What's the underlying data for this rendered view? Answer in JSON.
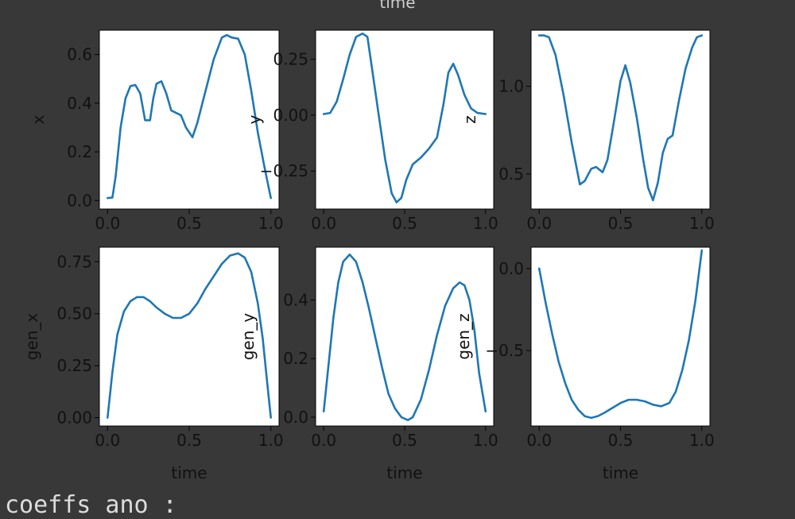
{
  "top_label": "time",
  "output_line": "coeffs ano :",
  "colors": {
    "background": "#383838",
    "panel": "#ffffff",
    "line": "#1f77b4",
    "text": "#111111"
  },
  "chart_data": [
    {
      "type": "line",
      "xlabel": "",
      "ylabel": "x",
      "xlim": [
        -0.05,
        1.05
      ],
      "ylim": [
        -0.035,
        0.7
      ],
      "xticks": [
        0.0,
        0.5,
        1.0
      ],
      "xtick_labels": [
        "0.0",
        "0.5",
        "1.0"
      ],
      "yticks": [
        0.0,
        0.2,
        0.4,
        0.6
      ],
      "ytick_labels": [
        "0.0",
        "0.2",
        "0.4",
        "0.6"
      ],
      "x": [
        0.0,
        0.03,
        0.05,
        0.08,
        0.11,
        0.14,
        0.17,
        0.2,
        0.23,
        0.26,
        0.28,
        0.3,
        0.33,
        0.36,
        0.39,
        0.42,
        0.45,
        0.48,
        0.52,
        0.55,
        0.6,
        0.65,
        0.7,
        0.73,
        0.76,
        0.8,
        0.84,
        0.88,
        0.92,
        0.96,
        1.0
      ],
      "y": [
        0.01,
        0.012,
        0.1,
        0.3,
        0.42,
        0.47,
        0.475,
        0.44,
        0.33,
        0.33,
        0.42,
        0.48,
        0.49,
        0.44,
        0.37,
        0.36,
        0.35,
        0.3,
        0.26,
        0.32,
        0.45,
        0.58,
        0.67,
        0.68,
        0.67,
        0.665,
        0.6,
        0.45,
        0.28,
        0.14,
        0.01
      ]
    },
    {
      "type": "line",
      "xlabel": "",
      "ylabel": "y",
      "xlim": [
        -0.05,
        1.05
      ],
      "ylim": [
        -0.42,
        0.38
      ],
      "xticks": [
        0.0,
        0.5,
        1.0
      ],
      "xtick_labels": [
        "0.0",
        "0.5",
        "1.0"
      ],
      "yticks": [
        -0.25,
        0.0,
        0.25
      ],
      "ytick_labels": [
        "−0.25",
        "0.00",
        "0.25"
      ],
      "x": [
        0.0,
        0.04,
        0.08,
        0.12,
        0.16,
        0.2,
        0.24,
        0.27,
        0.3,
        0.34,
        0.38,
        0.42,
        0.45,
        0.48,
        0.51,
        0.55,
        0.6,
        0.65,
        0.7,
        0.74,
        0.77,
        0.8,
        0.83,
        0.87,
        0.91,
        0.95,
        1.0
      ],
      "y": [
        0.005,
        0.01,
        0.06,
        0.16,
        0.27,
        0.35,
        0.365,
        0.35,
        0.2,
        0.0,
        -0.2,
        -0.35,
        -0.39,
        -0.37,
        -0.29,
        -0.22,
        -0.19,
        -0.15,
        -0.1,
        0.05,
        0.19,
        0.23,
        0.18,
        0.09,
        0.03,
        0.01,
        0.005
      ]
    },
    {
      "type": "line",
      "xlabel": "",
      "ylabel": "z",
      "xlim": [
        -0.05,
        1.05
      ],
      "ylim": [
        0.3,
        1.32
      ],
      "xticks": [
        0.0,
        0.5,
        1.0
      ],
      "xtick_labels": [
        "0.0",
        "0.5",
        "1.0"
      ],
      "yticks": [
        0.5,
        1.0
      ],
      "ytick_labels": [
        "0.5",
        "1.0"
      ],
      "x": [
        0.0,
        0.03,
        0.06,
        0.1,
        0.15,
        0.2,
        0.25,
        0.28,
        0.32,
        0.35,
        0.39,
        0.42,
        0.46,
        0.5,
        0.53,
        0.56,
        0.6,
        0.64,
        0.67,
        0.7,
        0.73,
        0.76,
        0.79,
        0.82,
        0.86,
        0.9,
        0.94,
        0.97,
        1.0
      ],
      "y": [
        1.29,
        1.29,
        1.28,
        1.18,
        0.95,
        0.68,
        0.44,
        0.46,
        0.53,
        0.54,
        0.51,
        0.58,
        0.8,
        1.03,
        1.12,
        1.02,
        0.82,
        0.58,
        0.42,
        0.35,
        0.45,
        0.62,
        0.7,
        0.72,
        0.92,
        1.1,
        1.22,
        1.28,
        1.29
      ]
    },
    {
      "type": "line",
      "xlabel": "time",
      "ylabel": "gen_x",
      "xlim": [
        -0.05,
        1.05
      ],
      "ylim": [
        -0.04,
        0.82
      ],
      "xticks": [
        0.0,
        0.5,
        1.0
      ],
      "xtick_labels": [
        "0.0",
        "0.5",
        "1.0"
      ],
      "yticks": [
        0.0,
        0.25,
        0.5,
        0.75
      ],
      "ytick_labels": [
        "0.00",
        "0.25",
        "0.50",
        "0.75"
      ],
      "x": [
        0.0,
        0.03,
        0.06,
        0.1,
        0.14,
        0.18,
        0.22,
        0.26,
        0.3,
        0.35,
        0.4,
        0.45,
        0.5,
        0.55,
        0.6,
        0.65,
        0.7,
        0.75,
        0.8,
        0.84,
        0.88,
        0.92,
        0.95,
        0.98,
        1.0
      ],
      "y": [
        0.0,
        0.22,
        0.4,
        0.51,
        0.56,
        0.58,
        0.58,
        0.56,
        0.53,
        0.5,
        0.48,
        0.48,
        0.5,
        0.55,
        0.62,
        0.68,
        0.74,
        0.78,
        0.79,
        0.77,
        0.7,
        0.55,
        0.38,
        0.15,
        0.0
      ]
    },
    {
      "type": "line",
      "xlabel": "time",
      "ylabel": "gen_y",
      "xlim": [
        -0.05,
        1.05
      ],
      "ylim": [
        -0.03,
        0.58
      ],
      "xticks": [
        0.0,
        0.5,
        1.0
      ],
      "xtick_labels": [
        "0.0",
        "0.5",
        "1.0"
      ],
      "yticks": [
        0.0,
        0.2,
        0.4
      ],
      "ytick_labels": [
        "0.0",
        "0.2",
        "0.4"
      ],
      "x": [
        0.0,
        0.03,
        0.06,
        0.09,
        0.12,
        0.16,
        0.2,
        0.24,
        0.28,
        0.32,
        0.36,
        0.4,
        0.44,
        0.48,
        0.52,
        0.55,
        0.6,
        0.65,
        0.7,
        0.75,
        0.8,
        0.84,
        0.87,
        0.9,
        0.93,
        0.96,
        1.0
      ],
      "y": [
        0.02,
        0.18,
        0.34,
        0.46,
        0.53,
        0.555,
        0.53,
        0.46,
        0.37,
        0.27,
        0.17,
        0.08,
        0.03,
        0.0,
        -0.01,
        0.0,
        0.06,
        0.16,
        0.28,
        0.38,
        0.44,
        0.46,
        0.45,
        0.4,
        0.3,
        0.15,
        0.02
      ]
    },
    {
      "type": "line",
      "xlabel": "time",
      "ylabel": "gen_z",
      "xlim": [
        -0.05,
        1.05
      ],
      "ylim": [
        -0.96,
        0.13
      ],
      "xticks": [
        0.0,
        0.5,
        1.0
      ],
      "xtick_labels": [
        "0.0",
        "0.5",
        "1.0"
      ],
      "yticks": [
        -0.5,
        0.0
      ],
      "ytick_labels": [
        "−0.5",
        "0.0"
      ],
      "x": [
        0.0,
        0.04,
        0.08,
        0.12,
        0.16,
        0.2,
        0.24,
        0.28,
        0.32,
        0.36,
        0.4,
        0.45,
        0.5,
        0.55,
        0.6,
        0.65,
        0.7,
        0.75,
        0.8,
        0.84,
        0.88,
        0.92,
        0.96,
        1.0
      ],
      "y": [
        0.0,
        -0.21,
        -0.4,
        -0.57,
        -0.7,
        -0.8,
        -0.86,
        -0.9,
        -0.91,
        -0.9,
        -0.88,
        -0.85,
        -0.82,
        -0.8,
        -0.8,
        -0.81,
        -0.83,
        -0.84,
        -0.82,
        -0.75,
        -0.62,
        -0.44,
        -0.2,
        0.11
      ]
    }
  ]
}
